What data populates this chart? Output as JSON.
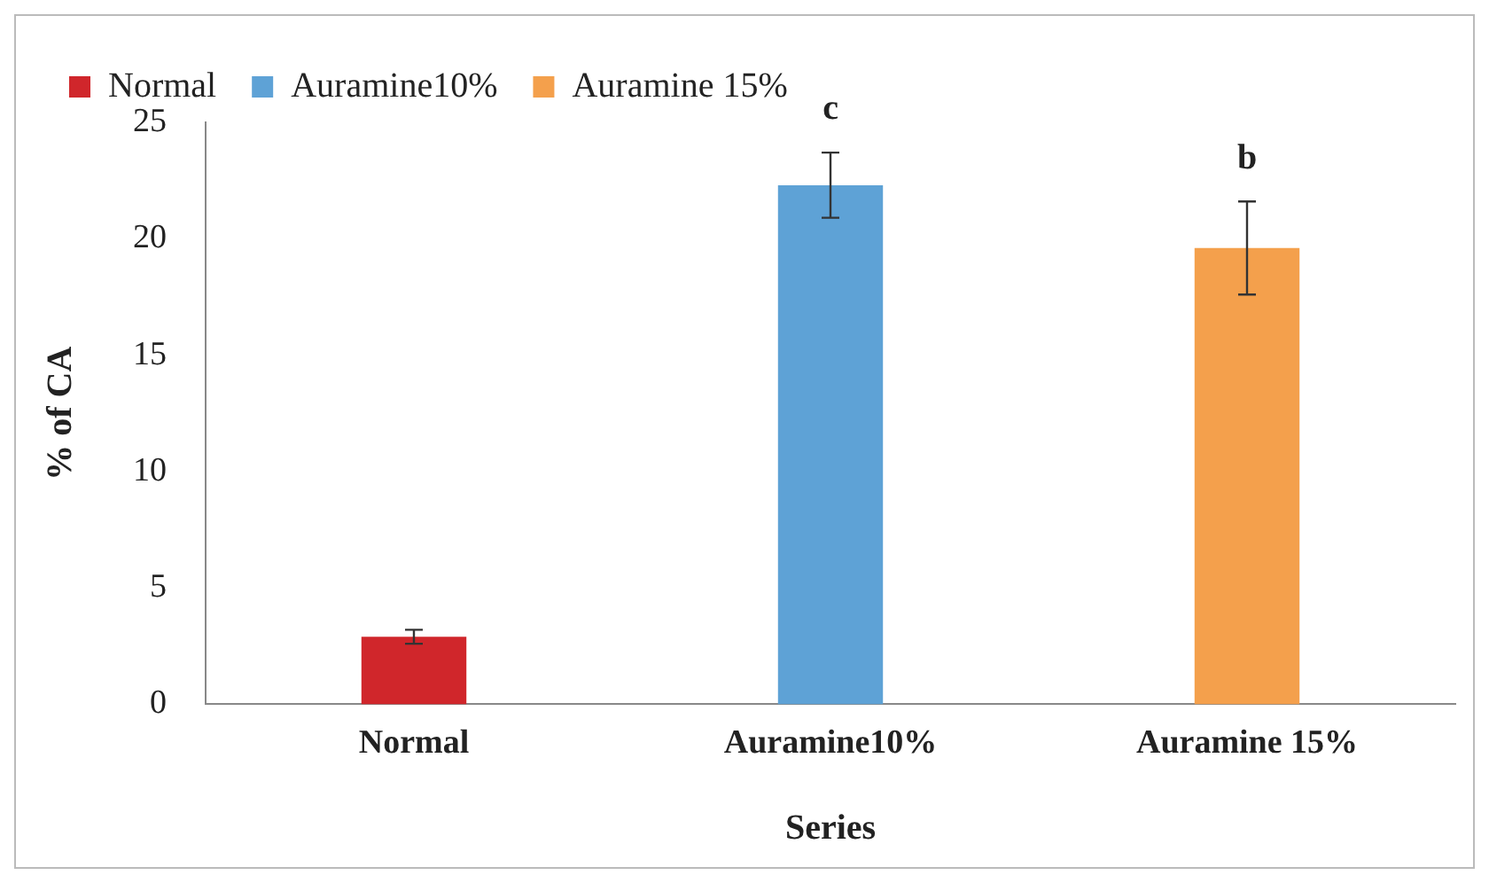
{
  "chart_data": {
    "type": "bar",
    "xlabel": "Series",
    "ylabel": "% of CA",
    "categories": [
      "Normal",
      "Auramine10%",
      "Auramine 15%"
    ],
    "series": [
      {
        "name": "Normal",
        "color": "#d0262b",
        "values": [
          2.9,
          null,
          null
        ],
        "errors": [
          0.3,
          null,
          null
        ]
      },
      {
        "name": "Auramine10%",
        "color": "#5ea2d6",
        "values": [
          null,
          22.3,
          null
        ],
        "errors": [
          null,
          1.4,
          null
        ]
      },
      {
        "name": "Auramine 15%",
        "color": "#f4a04c",
        "values": [
          null,
          null,
          19.6
        ],
        "errors": [
          null,
          null,
          2.0
        ]
      }
    ],
    "ylim": [
      0,
      25
    ],
    "yticks": [
      0,
      5,
      10,
      15,
      20,
      25
    ],
    "grid": false,
    "legend": "top left",
    "annotations": [
      {
        "text": "c",
        "x": "Auramine10%",
        "y": 23.7
      },
      {
        "text": "b",
        "x": "Auramine 15%",
        "y": 21.6
      }
    ]
  }
}
